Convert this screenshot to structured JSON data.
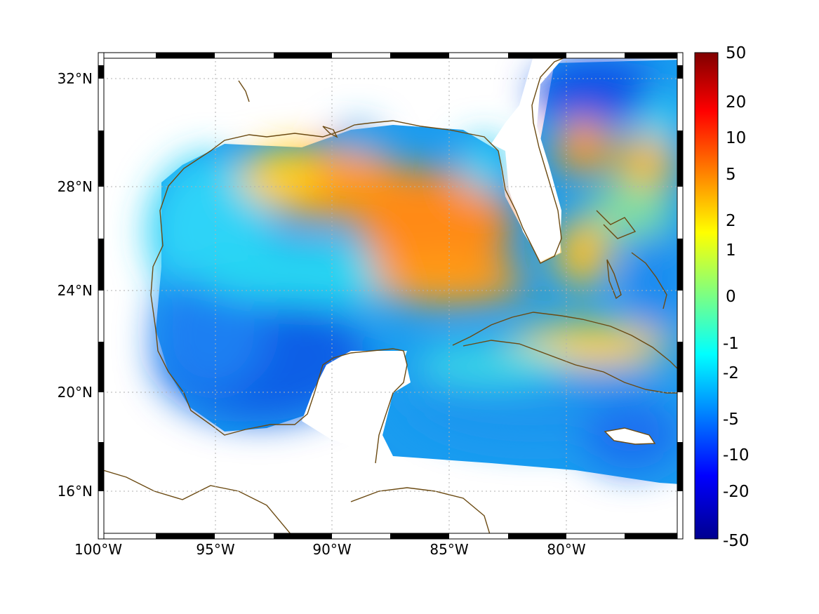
{
  "map": {
    "projection": "equidistant-cylindrical",
    "lon_range": [
      -100,
      -75
    ],
    "lat_range": [
      14.2,
      33
    ],
    "x_tick_values": [
      -100,
      -95,
      -90,
      -85,
      -80
    ],
    "x_tick_labels": [
      "100°W",
      "95°W",
      "90°W",
      "85°W",
      "80°W"
    ],
    "y_tick_values": [
      32,
      28,
      24,
      20,
      16
    ],
    "y_tick_labels": [
      "32°N",
      "28°N",
      "24°N",
      "20°N",
      "16°N"
    ],
    "grid": "dotted",
    "frame": "black-and-white-checkered",
    "coastline_color": "#6b4a12",
    "land_color": "#ffffff",
    "colormap": "jet"
  },
  "colorbar": {
    "position": "right",
    "labels": [
      "50",
      "20",
      "10",
      "5",
      "2",
      "1",
      "0",
      "-1",
      "-2",
      "-5",
      "-10",
      "-20",
      "-50"
    ],
    "colors": [
      "#800000",
      "#ff0000",
      "#ffff00",
      "#00ffff",
      "#0000ff",
      "#00008f"
    ]
  },
  "field_regions": [
    {
      "region": "northern-gulf-shelf",
      "level": 4
    },
    {
      "region": "loop-current",
      "level": 4
    },
    {
      "region": "western-gulf",
      "level": -2
    },
    {
      "region": "bay-of-campeche",
      "level": -5
    },
    {
      "region": "north-of-cuba",
      "level": 2
    },
    {
      "region": "caribbean",
      "level": -3
    },
    {
      "region": "atlantic-offshore-carolinas",
      "level": -6
    },
    {
      "region": "gulf-stream-eddies",
      "level": 3
    }
  ]
}
